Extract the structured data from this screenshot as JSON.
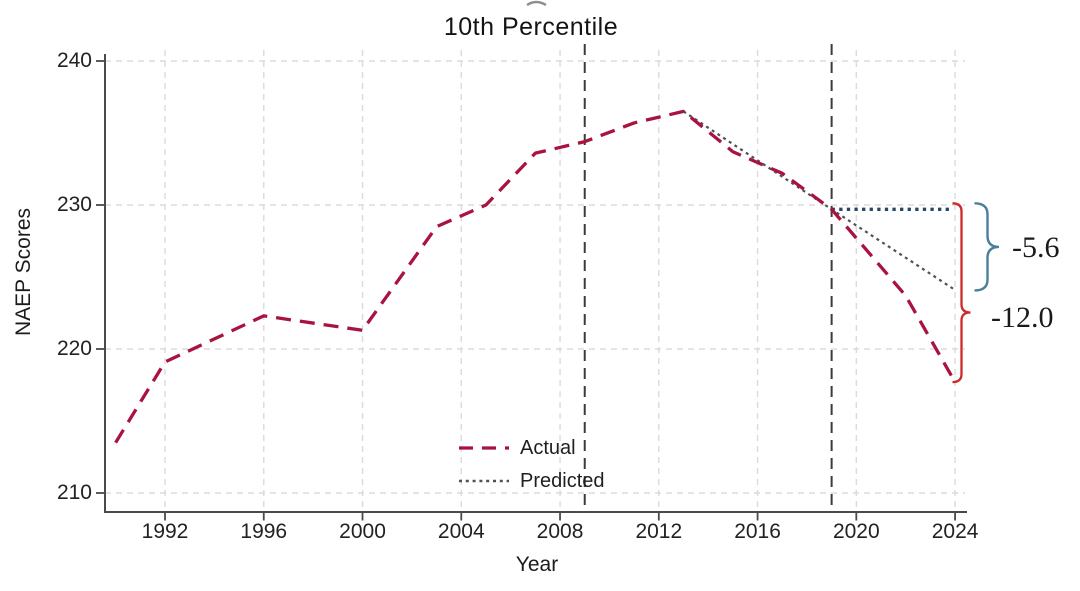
{
  "chart_data": {
    "type": "line",
    "title": "10th Percentile",
    "xlabel": "Year",
    "ylabel": "NAEP Scores",
    "x_ticks": [
      1992,
      1996,
      2000,
      2004,
      2008,
      2012,
      2016,
      2020,
      2024
    ],
    "y_ticks": [
      210,
      220,
      230,
      240
    ],
    "xlim": [
      1989.6,
      2024.5
    ],
    "ylim": [
      209,
      241.5
    ],
    "grid": true,
    "legend_position": "inside-lower-center",
    "series": [
      {
        "name": "Actual",
        "style": "dashed",
        "color": "#a8143f",
        "x": [
          1990,
          1992,
          1996,
          2000,
          2003,
          2005,
          2007,
          2009,
          2011,
          2013,
          2015,
          2017,
          2019,
          2022,
          2024
        ],
        "y": [
          213.5,
          219.1,
          222.3,
          221.3,
          228.5,
          230.0,
          233.6,
          234.4,
          235.7,
          236.5,
          233.7,
          232.2,
          229.7,
          223.7,
          217.7
        ]
      },
      {
        "name": "Predicted",
        "style": "dotted",
        "color": "#4c5457",
        "x": [
          2013,
          2019,
          2024
        ],
        "y": [
          236.5,
          229.7,
          224.1
        ]
      }
    ],
    "reference_level_2019": {
      "style": "dotted",
      "color": "#24476b",
      "x": [
        2019,
        2024
      ],
      "y": [
        229.7,
        229.7
      ]
    },
    "vertical_reference_years": [
      2009,
      2019
    ],
    "annotations": [
      {
        "label": "-5.6",
        "brace_color": "#4a7e9a"
      },
      {
        "label": "-12.0",
        "brace_color": "#cc2a2a"
      }
    ]
  }
}
